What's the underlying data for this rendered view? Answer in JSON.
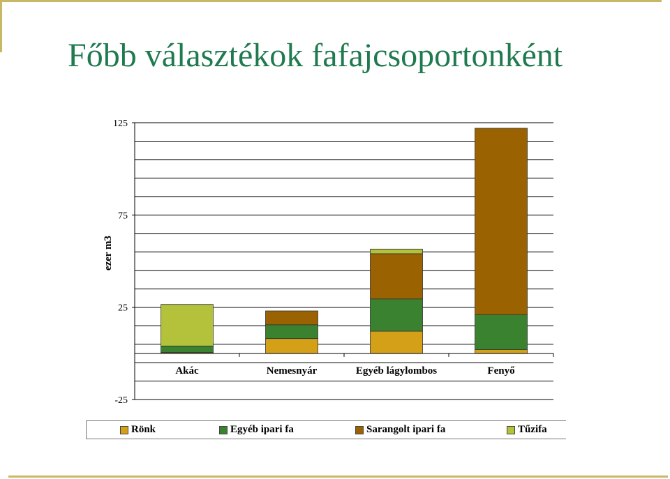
{
  "title": "Főbb választékok fafajcsoportonként",
  "colors": {
    "title": "#1f7a4f",
    "decoration": "#c8b865",
    "series": [
      "#d4a017",
      "#3a8230",
      "#9a6200",
      "#b3c23a"
    ]
  },
  "chart_data": {
    "type": "bar",
    "stacked": true,
    "categories": [
      "Akác",
      "Nemesnyár",
      "Egyéb lágylombos",
      "Fenyő"
    ],
    "series": [
      {
        "name": "Rönk",
        "values": [
          0.5,
          8,
          12,
          2
        ]
      },
      {
        "name": "Egyéb ipari fa",
        "values": [
          3.5,
          7.5,
          17.5,
          19
        ]
      },
      {
        "name": "Sarangolt ipari fa",
        "values": [
          0,
          7.5,
          24.5,
          101
        ]
      },
      {
        "name": "Tűzifa",
        "values": [
          22.5,
          0,
          2.5,
          0
        ]
      }
    ],
    "ylabel": "ezer m3",
    "xlabel": "",
    "ylim": [
      -25,
      125
    ],
    "yticks": [
      125,
      75,
      25,
      -25
    ],
    "gridlines": true,
    "legend": "bottom"
  }
}
